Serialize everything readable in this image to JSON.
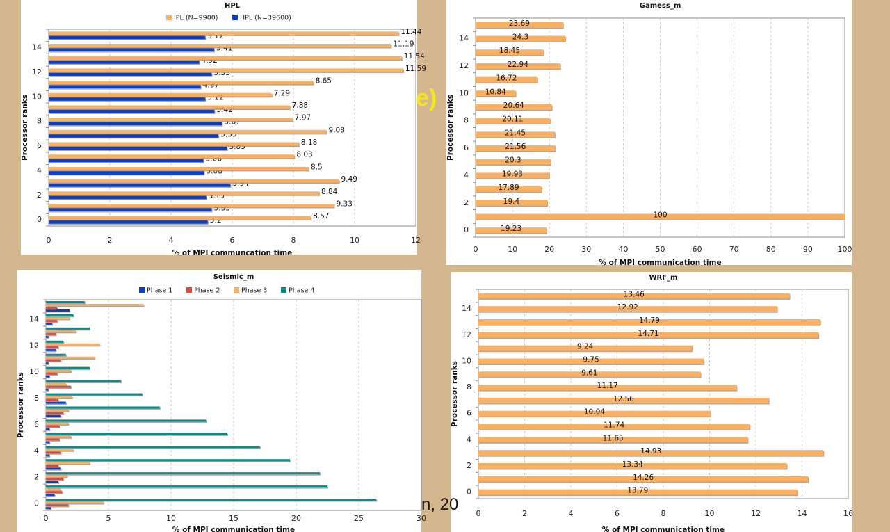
{
  "slide": {
    "label": "e)",
    "footer_fragment": "n, 20"
  },
  "colors": {
    "background": "#d4b78f",
    "orange": "#f9b062",
    "blue": "#0d3fc4",
    "red": "#e0483e",
    "teal": "#0e8a8a",
    "shadow": "#9a8f86",
    "grid": "#c8c8c8",
    "axis": "#8c8c8c"
  },
  "chart_data": [
    {
      "id": "hpl",
      "type": "bar",
      "orientation": "horizontal",
      "title": "HPL",
      "xlabel": "% of MPI communcation time",
      "ylabel": "Processor ranks",
      "xlim": [
        0,
        12
      ],
      "xticks": [
        "0",
        "2",
        "4",
        "6",
        "8",
        "10",
        "12"
      ],
      "yticks": [
        "0",
        "2",
        "4",
        "6",
        "8",
        "10",
        "12",
        "14"
      ],
      "categories": [
        "0",
        "1",
        "2",
        "3",
        "4",
        "5",
        "6",
        "7",
        "8",
        "9",
        "10",
        "11",
        "12",
        "13",
        "14",
        "15"
      ],
      "legend_position": "top",
      "grid": true,
      "series": [
        {
          "name": "HPL (N=39600)",
          "color": "blue",
          "values": [
            5.2,
            5.33,
            5.15,
            5.94,
            5.08,
            5.06,
            5.83,
            5.55,
            5.67,
            5.42,
            5.12,
            4.97,
            5.33,
            4.92,
            5.41,
            5.12
          ]
        },
        {
          "name": "IPL (N=9900)",
          "color": "orange",
          "values": [
            8.57,
            9.33,
            8.84,
            9.49,
            8.5,
            8.03,
            8.18,
            9.08,
            7.97,
            7.88,
            7.29,
            8.65,
            11.59,
            11.54,
            11.19,
            11.44
          ]
        }
      ],
      "legend": [
        {
          "name": "IPL (N=9900)",
          "color": "orange"
        },
        {
          "name": "HPL (N=39600)",
          "color": "blue"
        }
      ],
      "data_labels": true
    },
    {
      "id": "gamess",
      "type": "bar",
      "orientation": "horizontal",
      "title": "Gamess_m",
      "xlabel": "% of MPI communication time",
      "ylabel": "Processor ranks",
      "xlim": [
        0,
        100
      ],
      "xticks": [
        "0",
        "10",
        "20",
        "30",
        "40",
        "50",
        "60",
        "70",
        "80",
        "90",
        "100"
      ],
      "yticks": [
        "0",
        "2",
        "4",
        "6",
        "8",
        "10",
        "12",
        "14"
      ],
      "categories": [
        "0",
        "1",
        "2",
        "3",
        "4",
        "5",
        "6",
        "7",
        "8",
        "9",
        "10",
        "11",
        "12",
        "13",
        "14",
        "15"
      ],
      "grid": true,
      "series": [
        {
          "name": "Gamess_m",
          "color": "orange",
          "values": [
            19.23,
            100,
            19.4,
            17.89,
            19.93,
            20.3,
            21.56,
            21.45,
            20.11,
            20.64,
            10.84,
            16.72,
            22.94,
            18.45,
            24.3,
            23.69
          ]
        }
      ],
      "data_labels": true
    },
    {
      "id": "seismic",
      "type": "bar",
      "orientation": "horizontal",
      "title": "Seismic_m",
      "xlabel": "% of MPI communication time",
      "ylabel": "Processor ranks",
      "xlim": [
        0,
        30
      ],
      "xticks": [
        "0",
        "5",
        "10",
        "15",
        "20",
        "25",
        "30"
      ],
      "yticks": [
        "0",
        "2",
        "4",
        "6",
        "8",
        "10",
        "12",
        "14"
      ],
      "categories": [
        "0",
        "1",
        "2",
        "3",
        "4",
        "5",
        "6",
        "7",
        "8",
        "9",
        "10",
        "11",
        "12",
        "13",
        "14",
        "15"
      ],
      "legend_position": "top",
      "grid": true,
      "series": [
        {
          "name": "Phase 1",
          "color": "blue",
          "values": [
            0.4,
            0.7,
            1.0,
            1.2,
            0.3,
            0.3,
            0.3,
            1.2,
            1.6,
            0.2,
            0.3,
            0.2,
            0.8,
            0.2,
            0.5,
            1.9
          ]
        },
        {
          "name": "Phase 2",
          "color": "red",
          "values": [
            1.8,
            1.3,
            1.4,
            1.0,
            1.2,
            1.1,
            1.1,
            1.4,
            1.0,
            2.0,
            0.9,
            1.2,
            1.0,
            0.8,
            0.9,
            0.9
          ]
        },
        {
          "name": "Phase 3",
          "color": "orange",
          "values": [
            4.6,
            1.2,
            1.7,
            3.5,
            2.2,
            2.0,
            1.8,
            1.8,
            2.1,
            1.6,
            2.0,
            3.9,
            4.3,
            2.4,
            1.9,
            7.8
          ]
        },
        {
          "name": "Phase 4",
          "color": "teal",
          "values": [
            26.4,
            22.5,
            21.9,
            19.5,
            17.1,
            14.5,
            12.8,
            9.1,
            7.7,
            6.0,
            3.5,
            1.6,
            1.4,
            3.5,
            2.2,
            3.1
          ]
        }
      ],
      "data_labels": false
    },
    {
      "id": "wrf",
      "type": "bar",
      "orientation": "horizontal",
      "title": "WRF_m",
      "xlabel": "% of MPI communication time",
      "ylabel": "Processor ranks",
      "xlim": [
        0,
        16
      ],
      "xticks": [
        "0",
        "2",
        "4",
        "6",
        "8",
        "10",
        "12",
        "14",
        "16"
      ],
      "yticks": [
        "0",
        "2",
        "4",
        "6",
        "8",
        "10",
        "12",
        "14"
      ],
      "categories": [
        "0",
        "1",
        "2",
        "3",
        "4",
        "5",
        "6",
        "7",
        "8",
        "9",
        "10",
        "11",
        "12",
        "13",
        "14",
        "15"
      ],
      "grid": true,
      "series": [
        {
          "name": "WRF_m",
          "color": "orange",
          "values": [
            13.79,
            14.26,
            13.34,
            14.93,
            11.65,
            11.74,
            10.04,
            12.56,
            11.17,
            9.61,
            9.75,
            9.24,
            14.71,
            14.79,
            12.92,
            13.46
          ]
        }
      ],
      "data_labels": true
    }
  ]
}
